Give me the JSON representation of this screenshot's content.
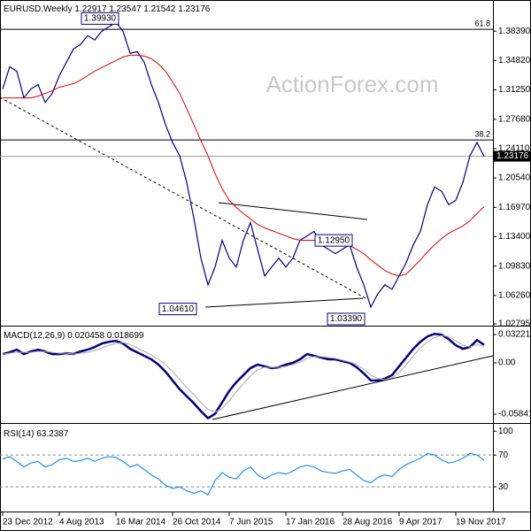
{
  "chart_data": [
    {
      "type": "line",
      "title": "EURUSD,Weekly",
      "ohlc": [
        1.22917,
        1.23547,
        1.21542,
        1.23176
      ],
      "watermark": "ActionForex.com",
      "categories": [
        "23 Dec 2012",
        null,
        null,
        null,
        null,
        null,
        null,
        null,
        "4 Aug 2013",
        null,
        null,
        null,
        null,
        null,
        null,
        null,
        "16 Mar 2014",
        null,
        null,
        null,
        null,
        null,
        null,
        null,
        "26 Oct 2014",
        null,
        null,
        null,
        null,
        null,
        null,
        null,
        "7 Jun 2015",
        null,
        null,
        null,
        null,
        null,
        null,
        null,
        "17 Jan 2016",
        null,
        null,
        null,
        null,
        null,
        null,
        null,
        "28 Aug 2016",
        null,
        null,
        null,
        null,
        null,
        null,
        null,
        "9 Apr 2017",
        null,
        null,
        null,
        null,
        null,
        null,
        null,
        "19 Nov 2017",
        null,
        null,
        null,
        null
      ],
      "ylim": [
        1.0258,
        1.4218
      ],
      "yticks": [
        {
          "value": 1.3839,
          "label": "1.38390"
        },
        {
          "value": 1.3482,
          "label": "1.34820"
        },
        {
          "value": 1.3125,
          "label": "1.31250"
        },
        {
          "value": 1.2768,
          "label": "1.27680"
        },
        {
          "value": 1.2411,
          "label": "1.24110"
        },
        {
          "value": 1.2054,
          "label": "1.20540"
        },
        {
          "value": 1.1697,
          "label": "1.16970"
        },
        {
          "value": 1.134,
          "label": "1.13400"
        },
        {
          "value": 1.0983,
          "label": "1.09830"
        },
        {
          "value": 1.0626,
          "label": "1.06260"
        },
        {
          "value": 1.02795,
          "label": "1.02795"
        }
      ],
      "fib_levels": [
        {
          "ratio": 61.8,
          "price": 1.3862
        },
        {
          "ratio": 38.2,
          "price": 1.2517
        }
      ],
      "annotations": [
        {
          "value": 1.3993,
          "label": "1.39930"
        },
        {
          "value": 1.1295,
          "label": "1.12950"
        },
        {
          "value": 1.0461,
          "label": "1.04610"
        },
        {
          "value": 1.0339,
          "label": "1.03390"
        }
      ],
      "series": [
        {
          "color": "#00008b",
          "values": [
            1.3136,
            1.3406,
            1.3352,
            1.3028,
            1.3136,
            1.319,
            1.2973,
            1.3082,
            1.3298,
            1.346,
            1.3623,
            1.3677,
            1.3785,
            1.3731,
            1.3839,
            1.3893,
            1.3947,
            1.3839,
            1.3569,
            1.359,
            1.346,
            1.319,
            1.2973,
            1.2703,
            1.2486,
            1.2324,
            1.1999,
            1.1567,
            1.108,
            1.0755,
            1.0971,
            1.1296,
            1.108,
            1.0971,
            1.1296,
            1.1512,
            1.1188,
            1.0863,
            1.0971,
            1.108,
            1.0971,
            1.108,
            1.1296,
            1.135,
            1.1404,
            1.1242,
            1.1188,
            1.1134,
            1.1188,
            1.1242,
            1.0971,
            1.0755,
            1.0484,
            1.0647,
            1.0755,
            1.0701,
            1.0863,
            1.1025,
            1.1242,
            1.1404,
            1.1729,
            1.1945,
            1.1891,
            1.1729,
            1.1783,
            1.1999,
            1.2324,
            1.2486,
            1.23176
          ]
        },
        {
          "color": "#e00000",
          "values": [
            1.3028,
            1.3028,
            1.3028,
            1.3028,
            1.3028,
            1.3049,
            1.3082,
            1.3114,
            1.3157,
            1.3179,
            1.3201,
            1.3244,
            1.3298,
            1.3352,
            1.3395,
            1.3439,
            1.3482,
            1.3525,
            1.3547,
            1.3547,
            1.3536,
            1.3504,
            1.3439,
            1.3352,
            1.3222,
            1.3082,
            1.2898,
            1.2703,
            1.2508,
            1.2324,
            1.2108,
            1.1924,
            1.1783,
            1.1696,
            1.1621,
            1.1556,
            1.1491,
            1.1447,
            1.1415,
            1.1382,
            1.135,
            1.1317,
            1.1296,
            1.1296,
            1.1296,
            1.1296,
            1.1296,
            1.1285,
            1.1263,
            1.1231,
            1.1188,
            1.1134,
            1.1058,
            1.0993,
            1.0928,
            1.0885,
            1.0863,
            1.0885,
            1.0971,
            1.1058,
            1.1155,
            1.1242,
            1.1317,
            1.1382,
            1.1426,
            1.1469,
            1.1534,
            1.1621,
            1.1707
          ]
        }
      ]
    },
    {
      "type": "line",
      "title": "MACD(12,26,9)",
      "indicator_values": [
        0.020458,
        0.018699
      ],
      "ylim": [
        -0.0685,
        0.0403
      ],
      "yticks": [
        0.032215,
        {
          "value": 0,
          "label": "0.00"
        },
        -0.058413
      ],
      "series": [
        {
          "color": "#000080",
          "values": [
            0.01,
            0.012,
            0.015,
            0.01,
            0.013,
            0.015,
            0.013,
            0.01,
            0.01,
            0.011,
            0.01,
            0.013,
            0.015,
            0.018,
            0.022,
            0.024,
            0.025,
            0.022,
            0.016,
            0.012,
            0.008,
            0.004,
            -0.002,
            -0.01,
            -0.02,
            -0.03,
            -0.038,
            -0.046,
            -0.055,
            -0.063,
            -0.058,
            -0.045,
            -0.032,
            -0.022,
            -0.014,
            -0.006,
            -0.002,
            -0.004,
            -0.006,
            -0.005,
            -0.002,
            0,
            0.004,
            0.01,
            0.008,
            0.006,
            0.004,
            0.004,
            0.002,
            0,
            -0.005,
            -0.012,
            -0.02,
            -0.02,
            -0.018,
            -0.014,
            -0.004,
            0.006,
            0.016,
            0.024,
            0.03,
            0.033,
            0.032,
            0.027,
            0.02,
            0.016,
            0.018,
            0.026,
            0.0205
          ]
        },
        {
          "color": "#a9a9a9",
          "values": [
            0.01,
            0.011,
            0.012,
            0.012,
            0.012,
            0.013,
            0.013,
            0.012,
            0.011,
            0.011,
            0.01,
            0.011,
            0.012,
            0.014,
            0.017,
            0.02,
            0.022,
            0.023,
            0.021,
            0.017,
            0.013,
            0.009,
            0.004,
            -0.002,
            -0.01,
            -0.019,
            -0.028,
            -0.036,
            -0.045,
            -0.053,
            -0.056,
            -0.052,
            -0.043,
            -0.033,
            -0.024,
            -0.015,
            -0.008,
            -0.005,
            -0.005,
            -0.005,
            -0.004,
            -0.002,
            0.001,
            0.005,
            0.007,
            0.007,
            0.006,
            0.005,
            0.003,
            0.001,
            -0.002,
            -0.007,
            -0.014,
            -0.018,
            -0.019,
            -0.017,
            -0.011,
            -0.002,
            0.008,
            0.017,
            0.024,
            0.029,
            0.031,
            0.03,
            0.025,
            0.02,
            0.018,
            0.021,
            0.0187
          ]
        }
      ]
    },
    {
      "type": "line",
      "title": "RSI(14)",
      "indicator_values": [
        63.2387
      ],
      "ylim": [
        -1,
        108
      ],
      "yticks": [
        100,
        70,
        30
      ],
      "levels": [
        70,
        30
      ],
      "series": [
        {
          "color": "#1e90ff",
          "values": [
            65,
            68,
            62,
            55,
            60,
            62,
            55,
            58,
            64,
            66,
            62,
            63,
            66,
            62,
            66,
            68,
            67,
            62,
            55,
            58,
            52,
            45,
            40,
            32,
            28,
            30,
            25,
            22,
            25,
            20,
            38,
            48,
            42,
            40,
            50,
            55,
            45,
            40,
            45,
            48,
            46,
            50,
            55,
            57,
            55,
            50,
            48,
            47,
            50,
            52,
            45,
            38,
            35,
            42,
            45,
            43,
            52,
            58,
            62,
            66,
            72,
            70,
            64,
            60,
            62,
            66,
            72,
            70,
            63.2387
          ]
        }
      ]
    }
  ]
}
